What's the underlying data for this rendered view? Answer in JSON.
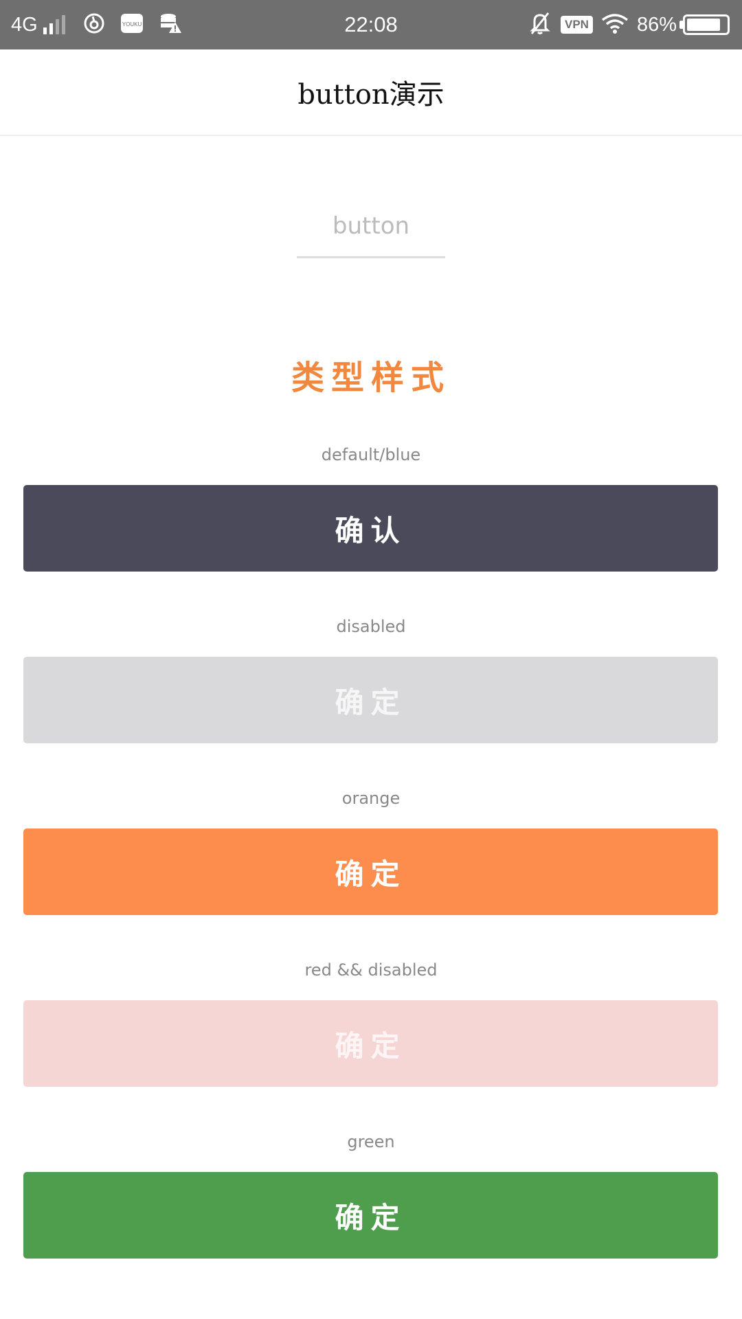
{
  "status_bar": {
    "network": "4G",
    "time": "22:08",
    "vpn": "VPN",
    "battery": "86%",
    "battery_level": 0.86,
    "left_icons": [
      "netease-music-icon",
      "youku-icon",
      "database-warning-icon"
    ],
    "right_icons": [
      "mute-bell-icon",
      "vpn-icon",
      "wifi-icon",
      "battery-icon"
    ]
  },
  "nav": {
    "title": "button演示"
  },
  "input": {
    "placeholder": "button",
    "value": ""
  },
  "section": {
    "title": "类型样式"
  },
  "buttons": [
    {
      "label": "default/blue",
      "text": "确认",
      "color": "#4a4a5a",
      "disabled": false
    },
    {
      "label": "disabled",
      "text": "确定",
      "color": "#d9d9db",
      "disabled": true
    },
    {
      "label": "orange",
      "text": "确定",
      "color": "#fc8d4d",
      "disabled": false
    },
    {
      "label": "red && disabled",
      "text": "确定",
      "color": "#f6d5d5",
      "disabled": true
    },
    {
      "label": "green",
      "text": "确定",
      "color": "#4e9e4d",
      "disabled": false
    }
  ]
}
